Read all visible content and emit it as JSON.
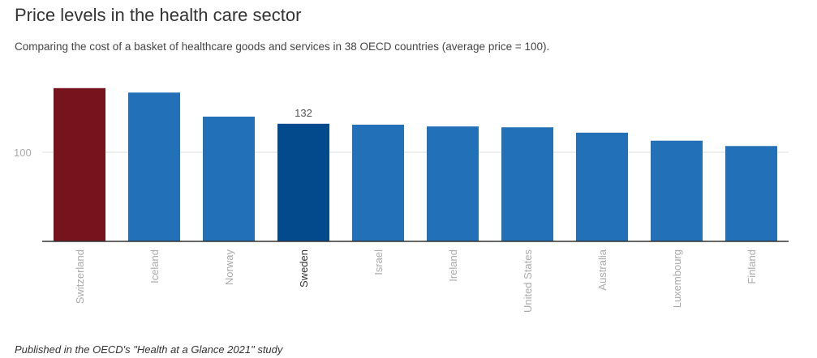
{
  "title": "Price levels in the health care sector",
  "subtitle": "Comparing the cost of a basket of healthcare goods and services in 38 OECD countries (average price = 100).",
  "footer": "Published in the OECD's \"Health at a Glance 2021\" study",
  "colors": {
    "bar": "#2170b8",
    "highlight_switzerland": "#76131c",
    "highlight_sweden": "#034a8c",
    "grid": "#dddddd",
    "axis": "#333333",
    "tick_label": "#aaaaaa",
    "highlight_label": "#333333"
  },
  "chart_data": {
    "type": "bar",
    "categories": [
      "Switzerland",
      "Iceland",
      "Norway",
      "Sweden",
      "Israel",
      "Ireland",
      "United States",
      "Australia",
      "Luxembourg",
      "Finland"
    ],
    "values": [
      172,
      167,
      140,
      132,
      131,
      129,
      128,
      122,
      113,
      107
    ],
    "highlighted": [
      "Switzerland",
      "Sweden"
    ],
    "data_labels": [
      {
        "category": "Sweden",
        "text": "132"
      }
    ],
    "y_ticks": [
      100
    ],
    "ylim": [
      0,
      180
    ],
    "grid": true,
    "legend": "none"
  }
}
